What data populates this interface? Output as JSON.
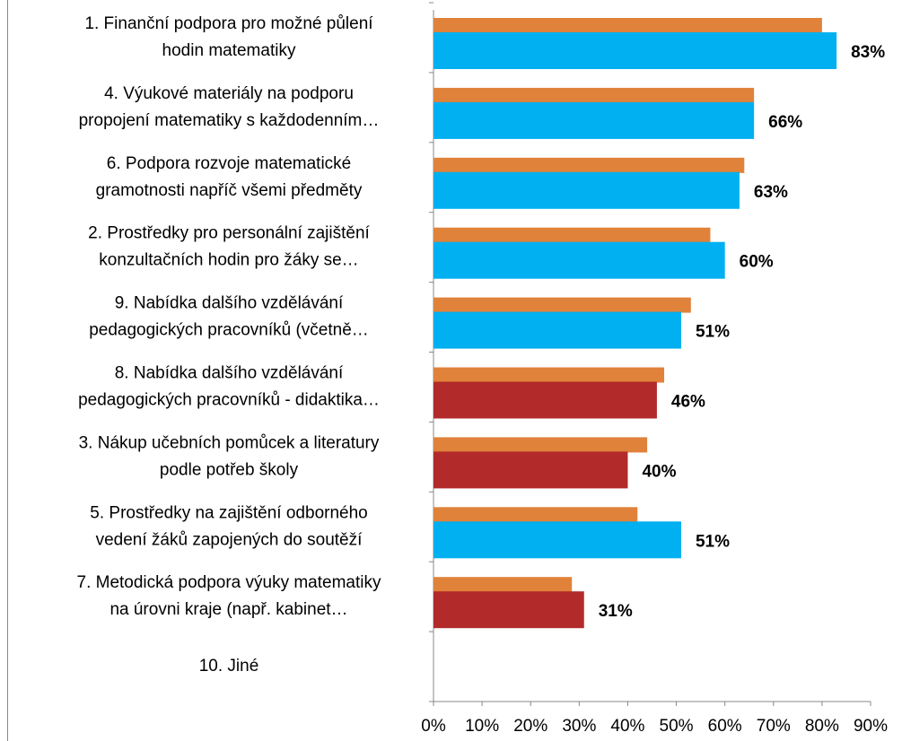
{
  "chart_data": {
    "type": "bar",
    "orientation": "horizontal",
    "categories": [
      [
        "1. Finanční podpora pro možné půlení",
        "hodin matematiky"
      ],
      [
        "4. Výukové materiály na podporu",
        "propojení matematiky s každodenním…"
      ],
      [
        "6. Podpora rozvoje matematické",
        "gramotnosti napříč všemi předměty"
      ],
      [
        "2. Prostředky pro personální zajištění",
        "konzultačních hodin pro žáky se…"
      ],
      [
        "9. Nabídka dalšího vzdělávání",
        "pedagogických pracovníků (včetně…"
      ],
      [
        "8. Nabídka dalšího vzdělávání",
        "pedagogických pracovníků - didaktika…"
      ],
      [
        "3. Nákup učebních pomůcek a literatury",
        "podle potřeb školy"
      ],
      [
        "5. Prostředky na zajištění odborného",
        "vedení žáků zapojených do soutěží"
      ],
      [
        "7. Metodická podpora výuky matematiky",
        "na úrovni kraje (např. kabinet…"
      ],
      [
        "10. Jiné"
      ]
    ],
    "series": [
      {
        "color": "#e0823a",
        "values": [
          80,
          66,
          64,
          57,
          53,
          47.5,
          44,
          42,
          28.5,
          null
        ]
      },
      {
        "colors": [
          "#00b0f0",
          "#00b0f0",
          "#00b0f0",
          "#00b0f0",
          "#00b0f0",
          "#b22a2a",
          "#b22a2a",
          "#00b0f0",
          "#b22a2a",
          null
        ],
        "values": [
          83,
          66,
          63,
          60,
          51,
          46,
          40,
          51,
          31,
          null
        ],
        "value_labels": [
          "83%",
          "66%",
          "63%",
          "60%",
          "51%",
          "46%",
          "40%",
          "51%",
          "31%",
          null
        ]
      }
    ],
    "xlim": [
      0,
      90
    ],
    "xticks": [
      {
        "value": 0,
        "label": "0%"
      },
      {
        "value": 10,
        "label": "10%"
      },
      {
        "value": 20,
        "label": "20%"
      },
      {
        "value": 30,
        "label": "30%"
      },
      {
        "value": 40,
        "label": "40%"
      },
      {
        "value": 50,
        "label": "50%"
      },
      {
        "value": 60,
        "label": "60%"
      },
      {
        "value": 70,
        "label": "70%"
      },
      {
        "value": 80,
        "label": "80%"
      },
      {
        "value": 90,
        "label": "90%"
      }
    ],
    "grid": false
  }
}
